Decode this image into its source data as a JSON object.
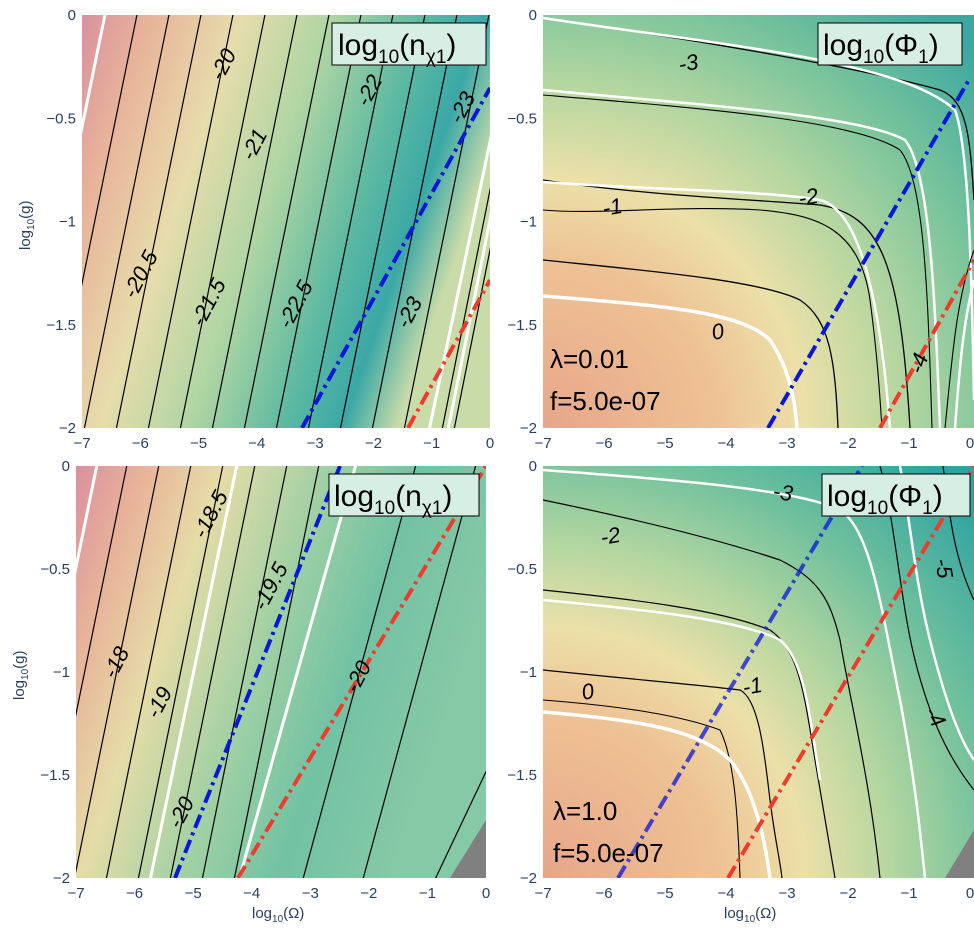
{
  "chart_data": [
    {
      "type": "contour",
      "title": "log10(nχ1)",
      "xlabel": "",
      "ylabel": "log10(g)",
      "xlim": [
        -7,
        0
      ],
      "ylim": [
        -2,
        0
      ],
      "x_ticks": [
        "−7",
        "−6",
        "−5",
        "−4",
        "−3",
        "−2",
        "−1",
        "0"
      ],
      "y_ticks": [
        "0",
        "−0.5",
        "−1",
        "−1.5",
        "−2"
      ],
      "contour_labels": [
        "-20",
        "-20.5",
        "-21",
        "-21.5",
        "-22",
        "-22.5",
        "-23",
        "-23",
        "-23"
      ],
      "blue_line": {
        "x": [
          -3.35,
          -0.0
        ],
        "y": [
          -2,
          -0.35
        ]
      },
      "red_line": {
        "x": [
          -1.45,
          0
        ],
        "y": [
          -2,
          -1.3
        ]
      }
    },
    {
      "type": "contour",
      "title": "log10(Φ1)",
      "xlim": [
        -7,
        0
      ],
      "ylim": [
        -2,
        0
      ],
      "x_ticks": [
        "−7",
        "−6",
        "−5",
        "−4",
        "−3",
        "−2",
        "−1",
        "0"
      ],
      "y_ticks": [
        "0",
        "−0.5",
        "−1",
        "−1.5",
        "−2"
      ],
      "contour_labels": [
        "-3",
        "-2",
        "-1",
        "0",
        "-4"
      ],
      "annotation": [
        "λ=0.01",
        "f=5.0e-07"
      ],
      "blue_line": {
        "x": [
          -3.35,
          -0.1
        ],
        "y": [
          -2,
          -0.35
        ]
      },
      "red_line": {
        "x": [
          -1.45,
          0
        ],
        "y": [
          -2,
          -1.3
        ]
      }
    },
    {
      "type": "contour",
      "title": "log10(nχ1)",
      "xlabel": "log10(Ω)",
      "ylabel": "log10(g)",
      "xlim": [
        -7,
        0
      ],
      "ylim": [
        -2,
        0
      ],
      "x_ticks": [
        "−7",
        "−6",
        "−5",
        "−4",
        "−3",
        "−2",
        "−1",
        "0"
      ],
      "y_ticks": [
        "0",
        "−0.5",
        "−1",
        "−1.5",
        "−2"
      ],
      "contour_labels": [
        "-18",
        "-18.5",
        "-19",
        "-19.5",
        "-20",
        "-20"
      ],
      "blue_line": {
        "x": [
          -5.3,
          -2.4
        ],
        "y": [
          -2,
          0
        ]
      },
      "red_line": {
        "x": [
          -4.2,
          0
        ],
        "y": [
          -2,
          0
        ]
      }
    },
    {
      "type": "contour",
      "title": "log10(Φ1)",
      "xlabel": "log10(Ω)",
      "xlim": [
        -7,
        0
      ],
      "ylim": [
        -2,
        0
      ],
      "x_ticks": [
        "−7",
        "−6",
        "−5",
        "−4",
        "−3",
        "−2",
        "−1",
        "0"
      ],
      "y_ticks": [
        "0",
        "−0.5",
        "−1",
        "−1.5",
        "−2"
      ],
      "contour_labels": [
        "-2",
        "-3",
        "0",
        "-1",
        "-4",
        "-5"
      ],
      "annotation": [
        "λ=1.0",
        "f=5.0e-07"
      ],
      "blue_line": {
        "x": [
          -5.3,
          -2.0
        ],
        "y": [
          -2,
          0
        ]
      },
      "red_line": {
        "x": [
          -4.0,
          0
        ],
        "y": [
          -2,
          0
        ]
      }
    }
  ],
  "text": {
    "p1_title_main": "log",
    "p1_title_sub": "10",
    "p1_title_tail": "(n",
    "p1_title_sub2": "χ1",
    "p1_title_end": ")",
    "p2_title_main": "log",
    "p2_title_sub": "10",
    "p2_title_tail": "(Φ",
    "p2_title_sub2": "1",
    "p2_title_end": ")",
    "p3_title_main": "log",
    "p3_title_sub": "10",
    "p3_title_tail": "(n",
    "p3_title_sub2": "χ1",
    "p3_title_end": ")",
    "p4_title_main": "log",
    "p4_title_sub": "10",
    "p4_title_tail": "(Φ",
    "p4_title_sub2": "1",
    "p4_title_end": ")",
    "ylabel_main": "log",
    "ylabel_sub": "10",
    "ylabel_tail": "(g)",
    "xlabel_main": "log",
    "xlabel_sub": "10",
    "xlabel_tail": "(Ω)"
  },
  "colors": {
    "bg_light": "#dde4c3",
    "contour_line": "#000000",
    "highlight_line": "#ffffff",
    "blue_dash": "#0a16d8",
    "red_dash": "#ef3b2c",
    "box_fill": "#d7eee5"
  }
}
